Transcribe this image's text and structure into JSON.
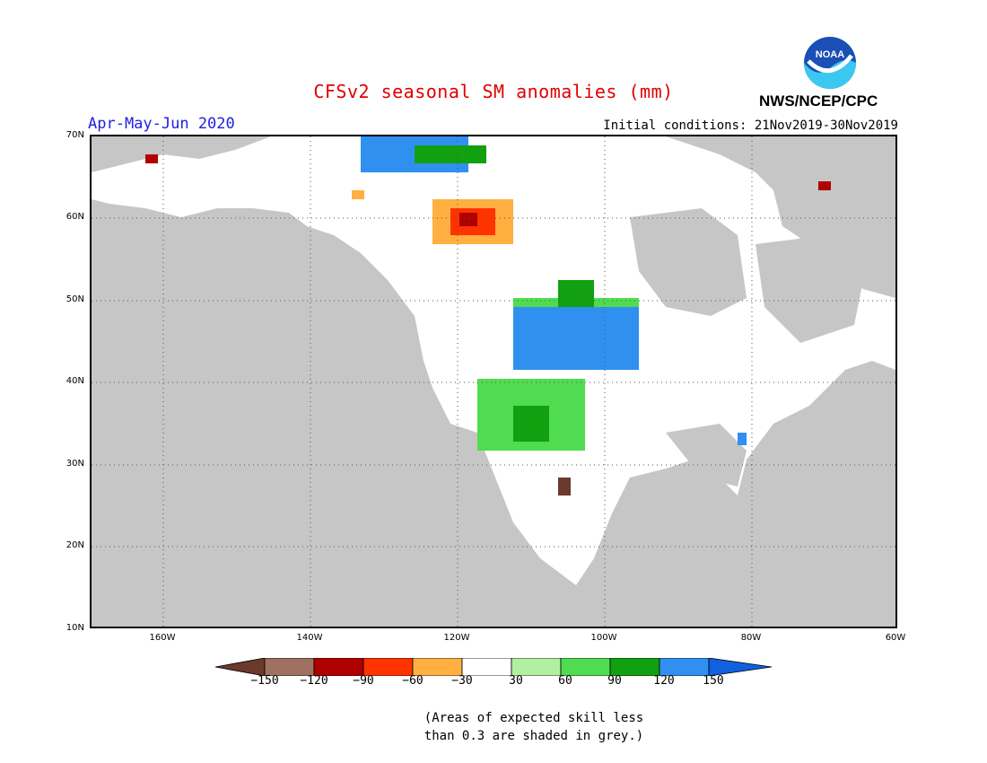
{
  "title": "CFSv2 seasonal SM anomalies (mm)",
  "season": "Apr-May-Jun 2020",
  "initial_conditions": "Initial conditions: 21Nov2019-30Nov2019",
  "agency": "NWS/NCEP/CPC",
  "logo_text": "NOAA",
  "lat_labels": [
    "70N",
    "60N",
    "50N",
    "40N",
    "30N",
    "20N",
    "10N"
  ],
  "lon_labels": [
    "160W",
    "140W",
    "120W",
    "100W",
    "80W",
    "60W"
  ],
  "legend": {
    "colors": [
      "#6b3a2a",
      "#a07060",
      "#b00000",
      "#ff3300",
      "#ffb040",
      "#ffffff",
      "#b0f0a0",
      "#50dc50",
      "#10a010",
      "#3090f0",
      "#1060e0"
    ],
    "ticks": [
      "−150",
      "−120",
      "−90",
      "−60",
      "−30",
      "30",
      "60",
      "90",
      "120",
      "150"
    ]
  },
  "note": [
    "(Areas of expected skill less",
    "than 0.3 are shaded in grey.)"
  ]
}
